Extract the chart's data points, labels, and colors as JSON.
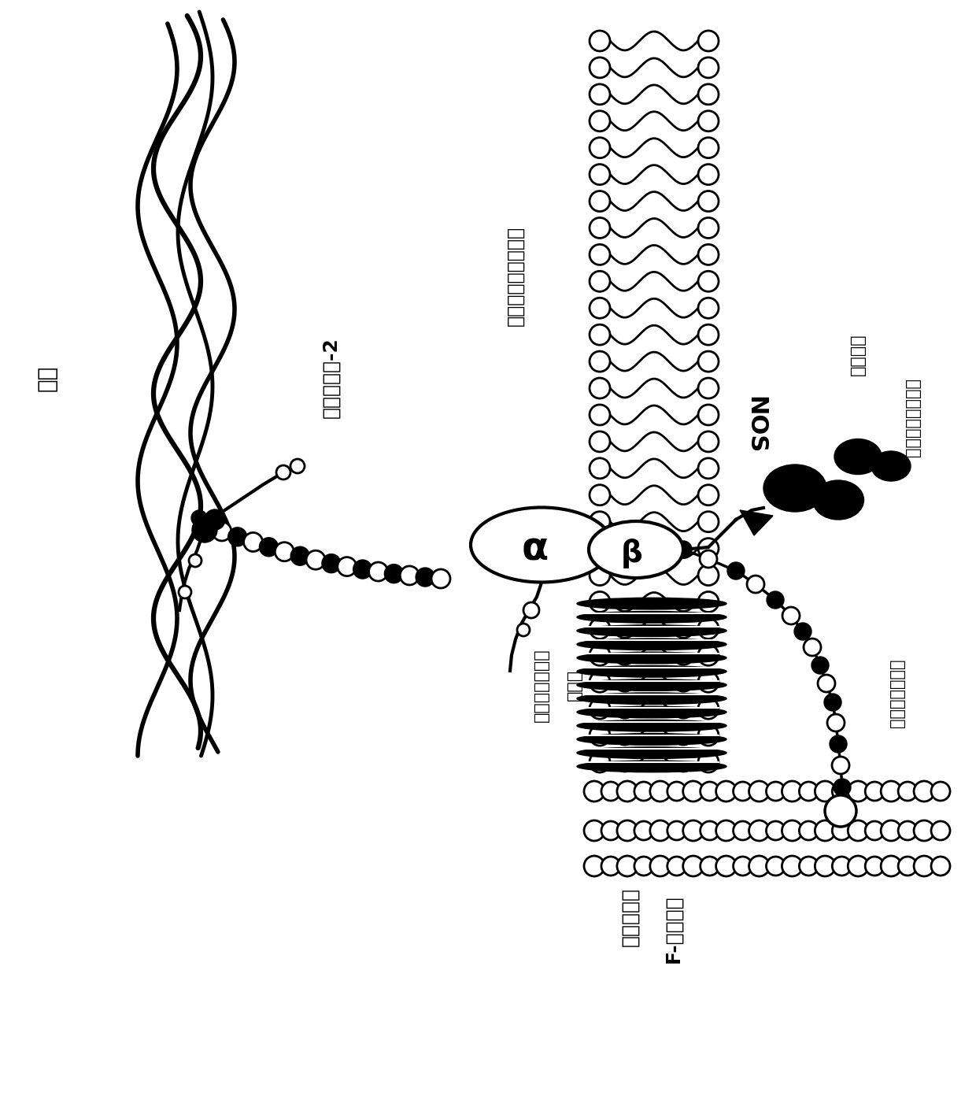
{
  "bg_color": "#ffffff",
  "black": "#000000",
  "labels": {
    "basement_membrane": "基膜",
    "laminin2": "层粘连蛋白-2",
    "dystroglycan_complex": "肉营养不良蛋白聚糖",
    "sarcoglycan": "肌聚糖",
    "double_sugar_chain": "双糖锁蛋白聚糖",
    "F_actin": "F-肌动蛋白",
    "muscle_fiber_membrane": "肌纤维肌膜",
    "NOS": "NOS",
    "syntrophin": "互营蛋白",
    "small_dystrophin": "小肌营养不良蛋白",
    "dystrophin_bad": "肌营养不良蛋白",
    "alpha": "α",
    "beta": "β"
  },
  "fig_width": 12.4,
  "fig_height": 14.06,
  "dpi": 100
}
